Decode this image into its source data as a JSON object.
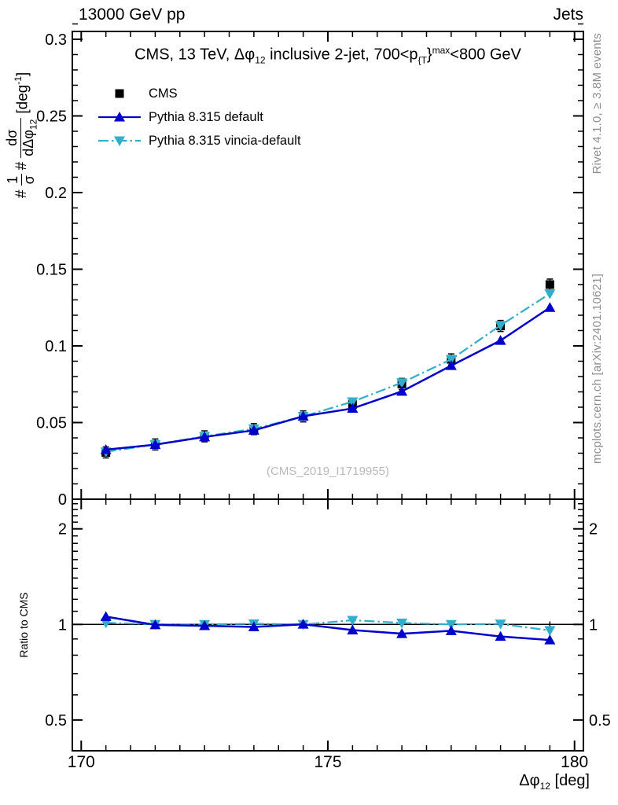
{
  "header": {
    "left_title": "13000 GeV pp",
    "right_title": "Jets"
  },
  "plot": {
    "title_parts": [
      {
        "t": "CMS, 13 TeV, "
      },
      {
        "t": "Δφ"
      },
      {
        "t": "12",
        "s": "sub"
      },
      {
        "t": " inclusive 2-jet, 700<p"
      },
      {
        "t": "{T",
        "s": "sub"
      },
      {
        "t": "}"
      },
      {
        "t": "max",
        "s": "sup"
      },
      {
        "t": "<800 GeV"
      }
    ],
    "xlabel_parts": [
      {
        "t": "Δφ"
      },
      {
        "t": "12",
        "s": "sub"
      },
      {
        "t": " [deg]"
      }
    ],
    "ylabel": {
      "prefix": "#",
      "frac1_num": "1",
      "frac1_den": "σ",
      "mid": "#",
      "frac2_num": "dσ",
      "frac2_den_main": "dΔφ",
      "frac2_den_sub": "12",
      "unit_pre": "[deg",
      "unit_sup": "-1",
      "unit_post": "]"
    },
    "ratio_label": "Ratio to CMS",
    "watermark": "(CMS_2019_I1719955)"
  },
  "side_notes": {
    "rivet": "Rivet 4.1.0, ≥ 3.8M events",
    "mcplots": "mcplots.cern.ch [arXiv:2401.10621]"
  },
  "legend": {
    "items": [
      {
        "label": "CMS",
        "marker": "square",
        "line": "none",
        "color": "#000000"
      },
      {
        "label": "Pythia 8.315 default",
        "marker": "triangle-up",
        "line": "solid",
        "color": "#0000cc"
      },
      {
        "label": "Pythia 8.315 vincia-default",
        "marker": "triangle-down",
        "line": "dashdot",
        "color": "#31aecb"
      }
    ]
  },
  "colors": {
    "frame": "#000000",
    "cms": "#000000",
    "pythia_default": "#0000cc",
    "pythia_vincia": "#31aecb",
    "gray_text": "#8e8e8e",
    "watermark": "#b9b9b9"
  },
  "chart_data": {
    "type": "line",
    "title": "CMS, 13 TeV, Δφ12 inclusive 2-jet, 700<pT^max<800 GeV",
    "xlabel": "Δφ12 [deg]",
    "ylabel": "1/σ dσ/dΔφ12 [deg^-1]",
    "legend_position": "top-left-inside",
    "x": [
      170.5,
      171.5,
      172.5,
      173.5,
      174.5,
      175.5,
      176.5,
      177.5,
      178.5,
      179.5
    ],
    "bin_width": 1.0,
    "series": [
      {
        "name": "CMS",
        "marker": "square",
        "color": "#000000",
        "line": "none",
        "values": [
          0.0305,
          0.0357,
          0.041,
          0.0457,
          0.054,
          0.0617,
          0.0752,
          0.0912,
          0.113,
          0.14
        ]
      },
      {
        "name": "Pythia 8.315 default",
        "marker": "triangle-up",
        "color": "#0000cc",
        "line": "solid",
        "values": [
          0.0323,
          0.0356,
          0.0406,
          0.0449,
          0.0541,
          0.0592,
          0.0703,
          0.0871,
          0.1035,
          0.125
        ]
      },
      {
        "name": "Pythia 8.315 vincia-default",
        "marker": "triangle-down",
        "color": "#31aecb",
        "line": "dashdot",
        "values": [
          0.0309,
          0.0357,
          0.041,
          0.0459,
          0.054,
          0.0636,
          0.076,
          0.0912,
          0.1134,
          0.134
        ]
      }
    ],
    "ratio": {
      "reference": "CMS",
      "ylabel": "Ratio to CMS",
      "series": [
        {
          "name": "Pythia 8.315 default",
          "marker": "triangle-up",
          "color": "#0000cc",
          "line": "solid",
          "values": [
            1.058,
            0.997,
            0.99,
            0.982,
            1.001,
            0.96,
            0.935,
            0.955,
            0.916,
            0.893
          ]
        },
        {
          "name": "Pythia 8.315 vincia-default",
          "marker": "triangle-down",
          "color": "#31aecb",
          "line": "dashdot",
          "values": [
            1.012,
            1.001,
            1.0,
            1.005,
            1.0,
            1.031,
            1.011,
            1.0,
            1.004,
            0.957
          ]
        }
      ]
    },
    "axes": {
      "x": {
        "min": 169.82,
        "max": 180.18,
        "major_ticks": [
          170,
          175,
          180
        ],
        "major_labels": [
          "170",
          "175",
          "180"
        ],
        "minor_step": 0.5
      },
      "y_main": {
        "scale": "linear",
        "min": 0,
        "max": 0.3051,
        "major_ticks": [
          0,
          0.05,
          0.1,
          0.15,
          0.2,
          0.25,
          0.3
        ],
        "major_labels": [
          "0",
          "0.05",
          "0.1",
          "0.15",
          "0.2",
          "0.25",
          "0.3"
        ],
        "minor_step": 0.01
      },
      "y_ratio": {
        "scale": "log",
        "min": 0.4,
        "max": 2.48,
        "major_ticks": [
          0.5,
          1,
          2
        ],
        "major_labels": [
          "0.5",
          "1",
          "2"
        ],
        "minor_ticks": [
          0.4,
          0.6,
          0.7,
          0.8,
          0.9,
          1.1,
          1.2,
          1.3,
          1.4,
          1.5,
          1.6,
          1.7,
          1.8,
          1.9,
          2.1,
          2.2,
          2.3,
          2.4
        ]
      }
    }
  }
}
